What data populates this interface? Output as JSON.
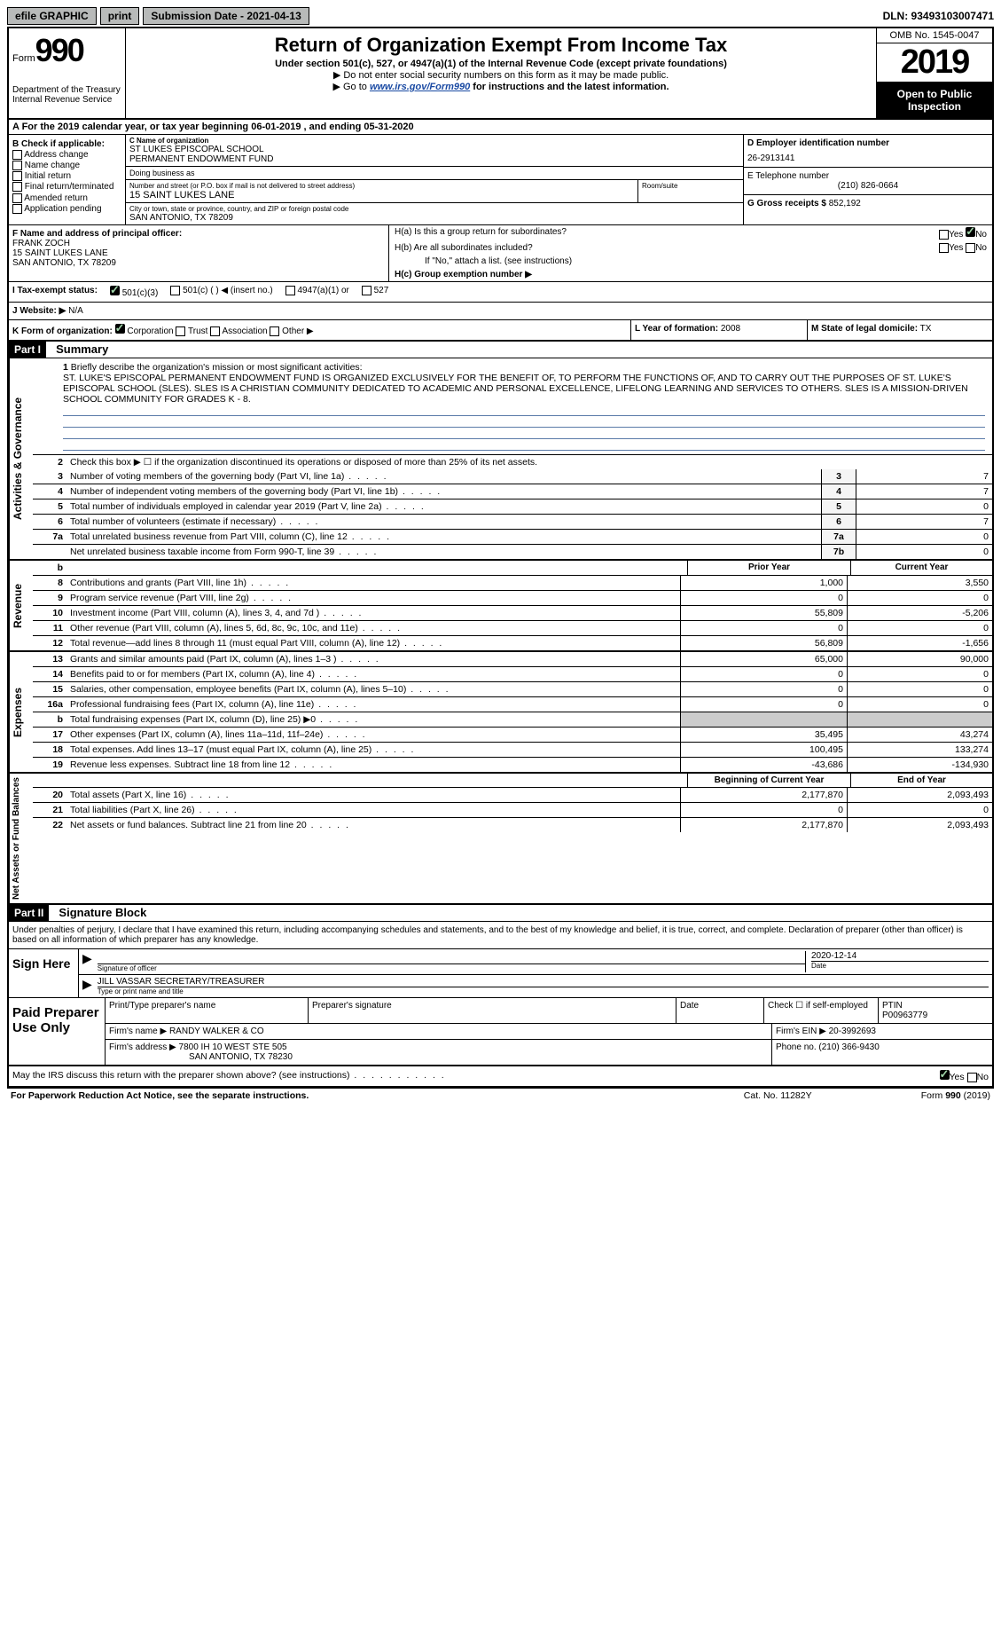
{
  "topbar": {
    "efile": "efile GRAPHIC",
    "print": "print",
    "sub_label": "Submission Date - 2021-04-13",
    "dln": "DLN: 93493103007471"
  },
  "header": {
    "form_label": "Form",
    "form_num": "990",
    "dept": "Department of the Treasury Internal Revenue Service",
    "title": "Return of Organization Exempt From Income Tax",
    "subtitle": "Under section 501(c), 527, or 4947(a)(1) of the Internal Revenue Code (except private foundations)",
    "instr1": "▶ Do not enter social security numbers on this form as it may be made public.",
    "instr2_pre": "▶ Go to ",
    "instr2_link": "www.irs.gov/Form990",
    "instr2_post": " for instructions and the latest information.",
    "omb": "OMB No. 1545-0047",
    "year": "2019",
    "open": "Open to Public Inspection"
  },
  "rowA": {
    "text_pre": "A For the 2019 calendar year, or tax year beginning ",
    "begin": "06-01-2019",
    "mid": "   , and ending ",
    "end": "05-31-2020"
  },
  "colB": {
    "title": "B Check if applicable:",
    "items": [
      "Address change",
      "Name change",
      "Initial return",
      "Final return/terminated",
      "Amended return",
      "Application pending"
    ]
  },
  "colC": {
    "name_label": "C Name of organization",
    "name1": "ST LUKES EPISCOPAL SCHOOL",
    "name2": "PERMANENT ENDOWMENT FUND",
    "dba": "Doing business as",
    "street_label": "Number and street (or P.O. box if mail is not delivered to street address)",
    "street": "15 SAINT LUKES LANE",
    "room_label": "Room/suite",
    "city_label": "City or town, state or province, country, and ZIP or foreign postal code",
    "city": "SAN ANTONIO, TX  78209"
  },
  "colDE": {
    "d_label": "D Employer identification number",
    "d_val": "26-2913141",
    "e_label": "E Telephone number",
    "e_val": "(210) 826-0664",
    "g_label": "G Gross receipts $",
    "g_val": "852,192"
  },
  "colF": {
    "label": "F Name and address of principal officer:",
    "name": "FRANK ZOCH",
    "street": "15 SAINT LUKES LANE",
    "city": "SAN ANTONIO, TX  78209"
  },
  "colH": {
    "a_label": "H(a)  Is this a group return for subordinates?",
    "b_label": "H(b)  Are all subordinates included?",
    "note": "If \"No,\" attach a list. (see instructions)",
    "c_label": "H(c)  Group exemption number ▶"
  },
  "rowI": {
    "label": "I    Tax-exempt status:",
    "opts": [
      "501(c)(3)",
      "501(c) (   ) ◀ (insert no.)",
      "4947(a)(1) or",
      "527"
    ]
  },
  "rowJ": {
    "label": "J    Website: ▶",
    "val": "N/A"
  },
  "rowK": {
    "label": "K Form of organization:",
    "opts": [
      "Corporation",
      "Trust",
      "Association",
      "Other ▶"
    ],
    "l_label": "L Year of formation:",
    "l_val": "2008",
    "m_label": "M State of legal domicile:",
    "m_val": "TX"
  },
  "part1": {
    "header": "Part I",
    "title": "Summary",
    "line1_label": "Briefly describe the organization's mission or most significant activities:",
    "mission": "ST. LUKE'S EPISCOPAL PERMANENT ENDOWMENT FUND IS ORGANIZED EXCLUSIVELY FOR THE BENEFIT OF, TO PERFORM THE FUNCTIONS OF, AND TO CARRY OUT THE PURPOSES OF ST. LUKE'S EPISCOPAL SCHOOL (SLES). SLES IS A CHRISTIAN COMMUNITY DEDICATED TO ACADEMIC AND PERSONAL EXCELLENCE, LIFELONG LEARNING AND SERVICES TO OTHERS. SLES IS A MISSION-DRIVEN SCHOOL COMMUNITY FOR GRADES K - 8.",
    "line2": "Check this box ▶ ☐ if the organization discontinued its operations or disposed of more than 25% of its net assets.",
    "gov_lines": [
      {
        "n": "3",
        "t": "Number of voting members of the governing body (Part VI, line 1a)",
        "c": "3",
        "v": "7"
      },
      {
        "n": "4",
        "t": "Number of independent voting members of the governing body (Part VI, line 1b)",
        "c": "4",
        "v": "7"
      },
      {
        "n": "5",
        "t": "Total number of individuals employed in calendar year 2019 (Part V, line 2a)",
        "c": "5",
        "v": "0"
      },
      {
        "n": "6",
        "t": "Total number of volunteers (estimate if necessary)",
        "c": "6",
        "v": "7"
      },
      {
        "n": "7a",
        "t": "Total unrelated business revenue from Part VIII, column (C), line 12",
        "c": "7a",
        "v": "0"
      },
      {
        "n": "",
        "t": "Net unrelated business taxable income from Form 990-T, line 39",
        "c": "7b",
        "v": "0"
      }
    ],
    "py_head": "Prior Year",
    "cy_head": "Current Year",
    "rev_lines": [
      {
        "n": "8",
        "t": "Contributions and grants (Part VIII, line 1h)",
        "py": "1,000",
        "cy": "3,550"
      },
      {
        "n": "9",
        "t": "Program service revenue (Part VIII, line 2g)",
        "py": "0",
        "cy": "0"
      },
      {
        "n": "10",
        "t": "Investment income (Part VIII, column (A), lines 3, 4, and 7d )",
        "py": "55,809",
        "cy": "-5,206"
      },
      {
        "n": "11",
        "t": "Other revenue (Part VIII, column (A), lines 5, 6d, 8c, 9c, 10c, and 11e)",
        "py": "0",
        "cy": "0"
      },
      {
        "n": "12",
        "t": "Total revenue—add lines 8 through 11 (must equal Part VIII, column (A), line 12)",
        "py": "56,809",
        "cy": "-1,656"
      }
    ],
    "exp_lines": [
      {
        "n": "13",
        "t": "Grants and similar amounts paid (Part IX, column (A), lines 1–3 )",
        "py": "65,000",
        "cy": "90,000"
      },
      {
        "n": "14",
        "t": "Benefits paid to or for members (Part IX, column (A), line 4)",
        "py": "0",
        "cy": "0"
      },
      {
        "n": "15",
        "t": "Salaries, other compensation, employee benefits (Part IX, column (A), lines 5–10)",
        "py": "0",
        "cy": "0"
      },
      {
        "n": "16a",
        "t": "Professional fundraising fees (Part IX, column (A), line 11e)",
        "py": "0",
        "cy": "0"
      },
      {
        "n": "b",
        "t": "Total fundraising expenses (Part IX, column (D), line 25) ▶0",
        "py": "",
        "cy": ""
      },
      {
        "n": "17",
        "t": "Other expenses (Part IX, column (A), lines 11a–11d, 11f–24e)",
        "py": "35,495",
        "cy": "43,274"
      },
      {
        "n": "18",
        "t": "Total expenses. Add lines 13–17 (must equal Part IX, column (A), line 25)",
        "py": "100,495",
        "cy": "133,274"
      },
      {
        "n": "19",
        "t": "Revenue less expenses. Subtract line 18 from line 12",
        "py": "-43,686",
        "cy": "-134,930"
      }
    ],
    "net_head_l": "Beginning of Current Year",
    "net_head_r": "End of Year",
    "net_lines": [
      {
        "n": "20",
        "t": "Total assets (Part X, line 16)",
        "py": "2,177,870",
        "cy": "2,093,493"
      },
      {
        "n": "21",
        "t": "Total liabilities (Part X, line 26)",
        "py": "0",
        "cy": "0"
      },
      {
        "n": "22",
        "t": "Net assets or fund balances. Subtract line 21 from line 20",
        "py": "2,177,870",
        "cy": "2,093,493"
      }
    ],
    "side_gov": "Activities & Governance",
    "side_rev": "Revenue",
    "side_exp": "Expenses",
    "side_net": "Net Assets or Fund Balances"
  },
  "part2": {
    "header": "Part II",
    "title": "Signature Block",
    "under": "Under penalties of perjury, I declare that I have examined this return, including accompanying schedules and statements, and to the best of my knowledge and belief, it is true, correct, and complete. Declaration of preparer (other than officer) is based on all information of which preparer has any knowledge.",
    "sign_here": "Sign Here",
    "sig_officer": "Signature of officer",
    "sig_date": "2020-12-14",
    "date_label": "Date",
    "name_title": "JILL VASSAR  SECRETARY/TREASURER",
    "name_label": "Type or print name and title",
    "paid": "Paid Preparer Use Only",
    "print_label": "Print/Type preparer's name",
    "prep_sig": "Preparer's signature",
    "check_self": "Check ☐ if self-employed",
    "ptin_label": "PTIN",
    "ptin": "P00963779",
    "firm_name_label": "Firm's name      ▶",
    "firm_name": "RANDY WALKER & CO",
    "firm_ein_label": "Firm's EIN ▶",
    "firm_ein": "20-3992693",
    "firm_addr_label": "Firm's address ▶",
    "firm_addr1": "7800 IH 10 WEST STE 505",
    "firm_addr2": "SAN ANTONIO, TX  78230",
    "phone_label": "Phone no.",
    "phone": "(210) 366-9430"
  },
  "footer": {
    "discuss": "May the IRS discuss this return with the preparer shown above? (see instructions)",
    "paperwork": "For Paperwork Reduction Act Notice, see the separate instructions.",
    "cat": "Cat. No. 11282Y",
    "form": "Form 990 (2019)"
  }
}
